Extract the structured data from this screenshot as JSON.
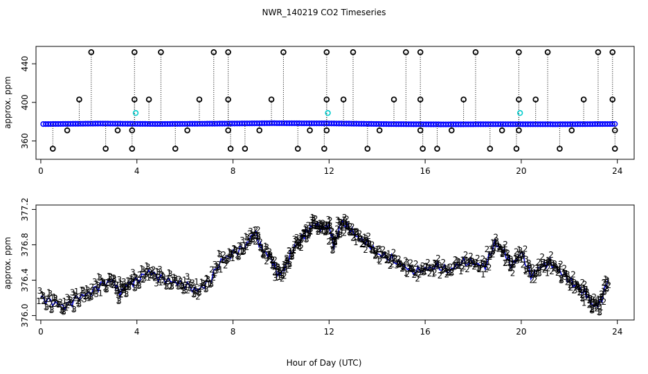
{
  "title": "NWR_140219  CO2 Timeseries",
  "xlabel": "Hour of Day (UTC)",
  "chart_data": [
    {
      "type": "scatter",
      "panel": "top",
      "ylabel": "approx. ppm",
      "xlim": [
        -0.2,
        24.7
      ],
      "ylim": [
        341,
        458
      ],
      "xticks": [
        0,
        4,
        8,
        12,
        16,
        20,
        24
      ],
      "yticks": [
        360,
        400,
        440
      ],
      "baseline_hours": [
        0.1,
        23.9
      ],
      "baseline_values": [
        377.5,
        378,
        377.6,
        377.9,
        378.4,
        378.2,
        377.5,
        377.2,
        377.4,
        377.3,
        377.6
      ],
      "baseline_color": "#0000ff",
      "outlier_color": "#000000",
      "cyan_color": "#00cccc",
      "outliers_high": [
        2.1,
        3.9,
        5.0,
        7.2,
        7.8,
        10.1,
        11.9,
        13.0,
        15.2,
        15.8,
        18.1,
        19.9,
        21.1,
        23.2,
        23.8
      ],
      "high_value": 452,
      "outliers_mid": [
        1.6,
        3.9,
        4.5,
        6.6,
        7.8,
        9.6,
        11.9,
        12.6,
        14.7,
        15.8,
        17.6,
        19.9,
        20.6,
        22.6,
        23.8
      ],
      "mid_value": 403,
      "outliers_low": [
        0.5,
        2.7,
        3.8,
        5.6,
        7.9,
        8.5,
        10.7,
        11.8,
        13.6,
        15.9,
        16.5,
        18.7,
        19.8,
        21.6,
        23.9
      ],
      "low_value": 352,
      "outliers_minor": [
        1.1,
        3.2,
        3.8,
        6.1,
        7.8,
        9.1,
        11.2,
        11.9,
        14.1,
        15.8,
        17.1,
        19.2,
        19.9,
        22.1,
        23.9
      ],
      "minor_value": 371,
      "cyan_points": [
        {
          "x": 3.95,
          "y": 389
        },
        {
          "x": 11.95,
          "y": 389
        },
        {
          "x": 19.95,
          "y": 389
        }
      ]
    },
    {
      "type": "scatter",
      "panel": "bottom",
      "ylabel": "approx. ppm",
      "xlim": [
        -0.2,
        24.7
      ],
      "ylim": [
        375.95,
        377.25
      ],
      "xticks": [
        0,
        4,
        8,
        12,
        16,
        20,
        24
      ],
      "yticks": [
        376.0,
        376.4,
        376.8,
        377.2
      ],
      "ytick_labels": [
        "376.0",
        "376.4",
        "376.8",
        "377.2"
      ],
      "line_color": "#0000cc",
      "marker_colors": {
        "1": "#dd0000",
        "2": "#00bb00",
        "3": "#0000cc"
      },
      "series": [
        {
          "x": 0.0,
          "y": 376.2
        },
        {
          "x": 0.5,
          "y": 376.15
        },
        {
          "x": 1.0,
          "y": 376.1
        },
        {
          "x": 1.5,
          "y": 376.2
        },
        {
          "x": 2.0,
          "y": 376.25
        },
        {
          "x": 2.5,
          "y": 376.35
        },
        {
          "x": 3.0,
          "y": 376.4
        },
        {
          "x": 3.3,
          "y": 376.25
        },
        {
          "x": 3.6,
          "y": 376.35
        },
        {
          "x": 4.0,
          "y": 376.4
        },
        {
          "x": 4.5,
          "y": 376.5
        },
        {
          "x": 5.0,
          "y": 376.42
        },
        {
          "x": 5.5,
          "y": 376.38
        },
        {
          "x": 6.0,
          "y": 376.35
        },
        {
          "x": 6.5,
          "y": 376.28
        },
        {
          "x": 7.0,
          "y": 376.38
        },
        {
          "x": 7.5,
          "y": 376.62
        },
        {
          "x": 8.0,
          "y": 376.7
        },
        {
          "x": 8.5,
          "y": 376.78
        },
        {
          "x": 8.9,
          "y": 376.95
        },
        {
          "x": 9.2,
          "y": 376.75
        },
        {
          "x": 9.6,
          "y": 376.65
        },
        {
          "x": 9.9,
          "y": 376.45
        },
        {
          "x": 10.2,
          "y": 376.55
        },
        {
          "x": 10.5,
          "y": 376.75
        },
        {
          "x": 10.8,
          "y": 376.85
        },
        {
          "x": 11.1,
          "y": 376.95
        },
        {
          "x": 11.4,
          "y": 377.05
        },
        {
          "x": 11.7,
          "y": 376.98
        },
        {
          "x": 12.0,
          "y": 377.02
        },
        {
          "x": 12.2,
          "y": 376.78
        },
        {
          "x": 12.5,
          "y": 377.06
        },
        {
          "x": 12.8,
          "y": 377.0
        },
        {
          "x": 13.2,
          "y": 376.88
        },
        {
          "x": 13.6,
          "y": 376.82
        },
        {
          "x": 14.0,
          "y": 376.7
        },
        {
          "x": 14.5,
          "y": 376.65
        },
        {
          "x": 15.0,
          "y": 376.58
        },
        {
          "x": 15.5,
          "y": 376.5
        },
        {
          "x": 16.0,
          "y": 376.52
        },
        {
          "x": 16.5,
          "y": 376.56
        },
        {
          "x": 17.0,
          "y": 376.5
        },
        {
          "x": 17.5,
          "y": 376.6
        },
        {
          "x": 18.0,
          "y": 376.6
        },
        {
          "x": 18.5,
          "y": 376.55
        },
        {
          "x": 18.9,
          "y": 376.82
        },
        {
          "x": 19.3,
          "y": 376.72
        },
        {
          "x": 19.6,
          "y": 376.55
        },
        {
          "x": 20.0,
          "y": 376.72
        },
        {
          "x": 20.4,
          "y": 376.45
        },
        {
          "x": 20.8,
          "y": 376.55
        },
        {
          "x": 21.2,
          "y": 376.6
        },
        {
          "x": 21.6,
          "y": 376.5
        },
        {
          "x": 22.0,
          "y": 376.4
        },
        {
          "x": 22.4,
          "y": 376.3
        },
        {
          "x": 22.7,
          "y": 376.25
        },
        {
          "x": 23.0,
          "y": 376.1
        },
        {
          "x": 23.3,
          "y": 376.15
        },
        {
          "x": 23.6,
          "y": 376.4
        }
      ]
    }
  ]
}
